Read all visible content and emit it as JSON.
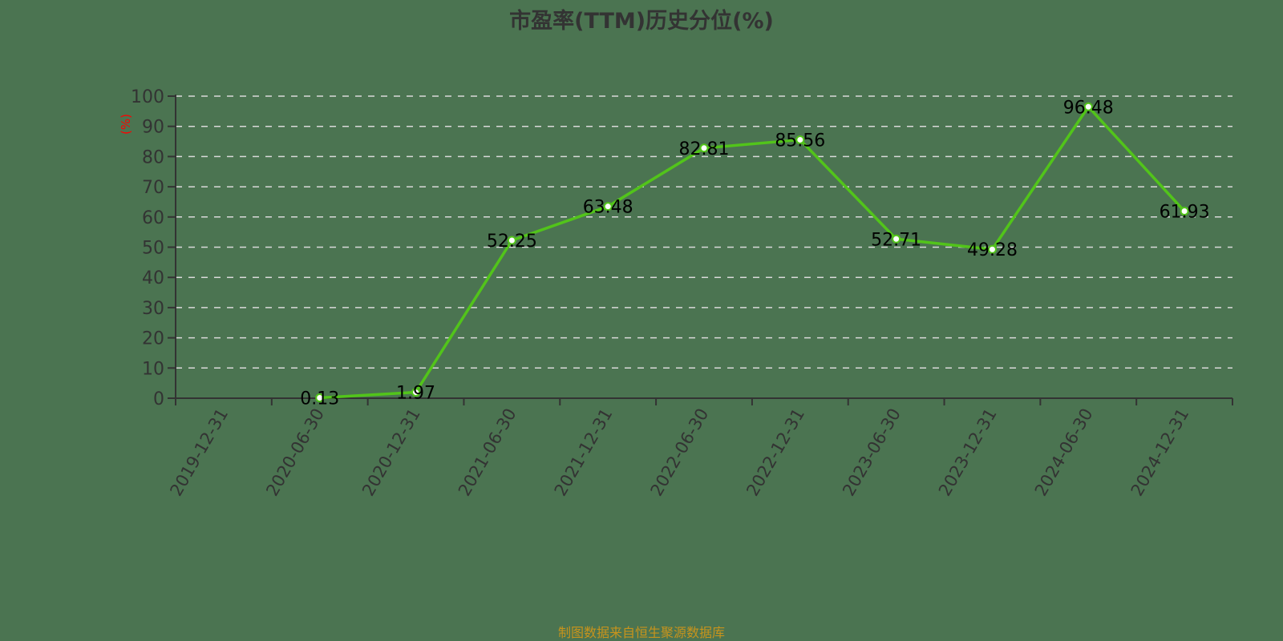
{
  "title": "市盈率(TTM)历史分位(%)",
  "footer": "制图数据来自恒生聚源数据库",
  "colors": {
    "background": "#4b7451",
    "line": "#52c41a",
    "axis": "#333333",
    "grid": "#d9d9d9",
    "ylabel": "#ff0000",
    "footer": "#c8941c",
    "label": "#000000"
  },
  "chart_data": {
    "type": "line",
    "title": "市盈率(TTM)历史分位(%)",
    "xlabel": "",
    "ylabel": "(%)",
    "ylim": [
      0,
      100
    ],
    "yticks": [
      0,
      10,
      20,
      30,
      40,
      50,
      60,
      70,
      80,
      90,
      100
    ],
    "grid": true,
    "legend": null,
    "categories": [
      "2019-12-31",
      "2020-06-30",
      "2020-12-31",
      "2021-06-30",
      "2021-12-31",
      "2022-06-30",
      "2022-12-31",
      "2023-06-30",
      "2023-12-31",
      "2024-06-30",
      "2024-12-31"
    ],
    "series": [
      {
        "name": "市盈率(TTM)历史分位",
        "values": [
          null,
          0.13,
          1.97,
          52.25,
          63.48,
          82.81,
          85.56,
          52.71,
          49.28,
          96.48,
          61.93
        ]
      }
    ]
  }
}
